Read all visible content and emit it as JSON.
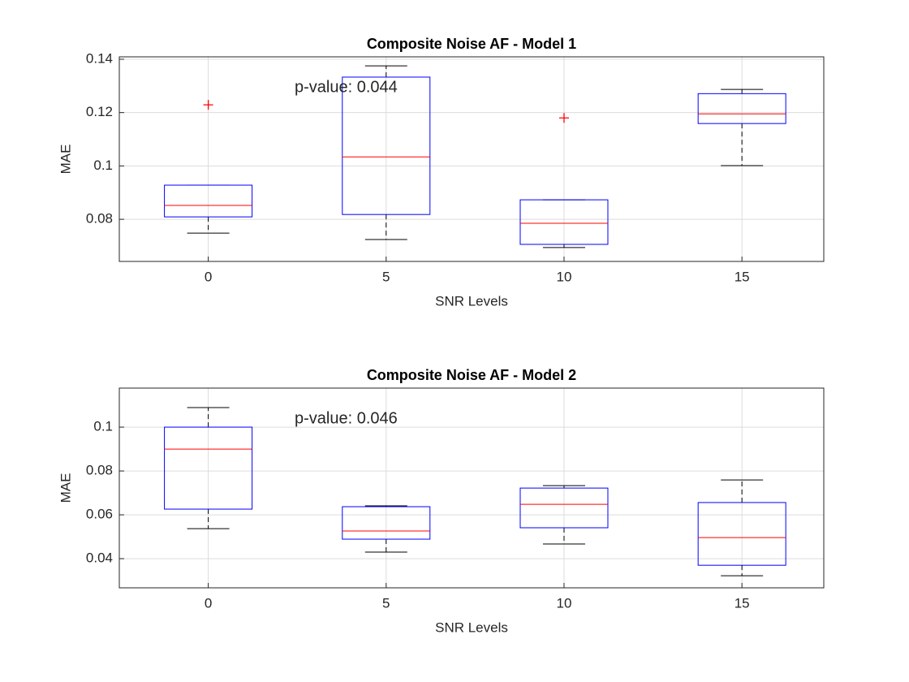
{
  "chart_data": [
    {
      "type": "box",
      "title": "Composite Noise AF - Model 1",
      "xlabel": "SNR Levels",
      "ylabel": "MAE",
      "annotation": "p-value: 0.044",
      "annotation_color": "#ff0000",
      "x": [
        0,
        5,
        10,
        15
      ],
      "xlim": [
        -2.5,
        17.3
      ],
      "xticks": [
        0,
        5,
        10,
        15
      ],
      "ylim": [
        0.0642,
        0.1409
      ],
      "yticks": [
        0.08,
        0.1,
        0.12,
        0.14
      ],
      "grid": true,
      "box_color": "#0000ff",
      "median_color": "#ff0000",
      "whisker_color": "#000000",
      "outlier_color": "#ff0000",
      "min": [
        0.0748,
        0.0724,
        0.0694,
        0.1001
      ],
      "q1": [
        0.0809,
        0.0818,
        0.0706,
        0.1159
      ],
      "median": [
        0.0852,
        0.1034,
        0.0785,
        0.1195
      ],
      "q3": [
        0.0928,
        0.1333,
        0.0873,
        0.1271
      ],
      "max": [
        0.0928,
        0.1375,
        0.0873,
        0.1287
      ],
      "outliers": [
        [
          0.1229
        ],
        [],
        [
          0.118
        ],
        []
      ]
    },
    {
      "type": "box",
      "title": "Composite Noise AF - Model 2",
      "xlabel": "SNR Levels",
      "ylabel": "MAE",
      "annotation": "p-value: 0.046",
      "annotation_color": "#ff0000",
      "x": [
        0,
        5,
        10,
        15
      ],
      "xlim": [
        -2.5,
        17.3
      ],
      "xticks": [
        0,
        5,
        10,
        15
      ],
      "ylim": [
        0.0267,
        0.1178
      ],
      "yticks": [
        0.04,
        0.06,
        0.08,
        0.1
      ],
      "grid": true,
      "box_color": "#0000ff",
      "median_color": "#ff0000",
      "whisker_color": "#000000",
      "outlier_color": "#ff0000",
      "min": [
        0.0537,
        0.043,
        0.0467,
        0.0322
      ],
      "q1": [
        0.0626,
        0.0489,
        0.0541,
        0.037
      ],
      "median": [
        0.09,
        0.0526,
        0.0648,
        0.0496
      ],
      "q3": [
        0.1,
        0.0637,
        0.0722,
        0.0656
      ],
      "max": [
        0.1089,
        0.0641,
        0.0733,
        0.0759
      ],
      "outliers": [
        [],
        [],
        [],
        []
      ]
    }
  ]
}
